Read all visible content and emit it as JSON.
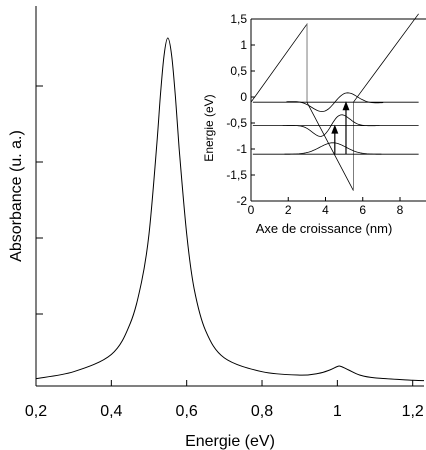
{
  "chart_data": [
    {
      "type": "line",
      "xlabel": "Energie (eV)",
      "ylabel": "Absorbance (u. a.)",
      "xlim": [
        0.2,
        1.23
      ],
      "ylim": [
        0,
        1
      ],
      "x_ticks": [
        "0,2",
        "0,4",
        "0,6",
        "0,8",
        "1",
        "1,2"
      ],
      "x_tick_values": [
        0.2,
        0.4,
        0.6,
        0.8,
        1.0,
        1.2
      ],
      "y_ticks_labeled": false,
      "grid": false,
      "series": [
        {
          "x": [
            0.2,
            0.3,
            0.4,
            0.45,
            0.48,
            0.5,
            0.52,
            0.53,
            0.54,
            0.55,
            0.56,
            0.57,
            0.58,
            0.6,
            0.62,
            0.65,
            0.7,
            0.8,
            0.9,
            0.95,
            0.98,
            1.0,
            1.01,
            1.03,
            1.06,
            1.1,
            1.2,
            1.23
          ],
          "y": [
            0.01,
            0.03,
            0.08,
            0.17,
            0.29,
            0.43,
            0.68,
            0.83,
            0.95,
            1.0,
            0.95,
            0.83,
            0.68,
            0.43,
            0.27,
            0.15,
            0.07,
            0.03,
            0.02,
            0.025,
            0.035,
            0.045,
            0.045,
            0.035,
            0.02,
            0.012,
            0.005,
            0.004
          ]
        }
      ]
    },
    {
      "type": "line",
      "xlabel": "Axe de croissance (nm)",
      "ylabel": "Energie (eV)",
      "xlim": [
        0,
        9
      ],
      "ylim": [
        -2,
        1.5
      ],
      "x_ticks": [
        "0",
        "2",
        "4",
        "6",
        "8"
      ],
      "x_tick_values": [
        0,
        2,
        4,
        6,
        8
      ],
      "y_ticks": [
        "-2",
        "-1,5",
        "-1",
        "-0,5",
        "0",
        "0,5",
        "1",
        "1,5"
      ],
      "y_tick_values": [
        -2,
        -1.5,
        -1,
        -0.5,
        0,
        0.5,
        1,
        1.5
      ],
      "grid": false,
      "series": [
        {
          "x": [
            0,
            3,
            3,
            3,
            5.5,
            5.5,
            5.5,
            9
          ],
          "y": [
            -0.1,
            1.4,
            -0.1,
            -0.1,
            -1.8,
            -1.8,
            -0.1,
            1.6
          ]
        }
      ],
      "levels": [
        -1.1,
        -0.55,
        -0.1
      ],
      "transitions": [
        {
          "x": 4.5,
          "from": -1.1,
          "to": -0.55
        },
        {
          "x": 5.1,
          "from": -1.1,
          "to": -0.1
        }
      ]
    }
  ]
}
